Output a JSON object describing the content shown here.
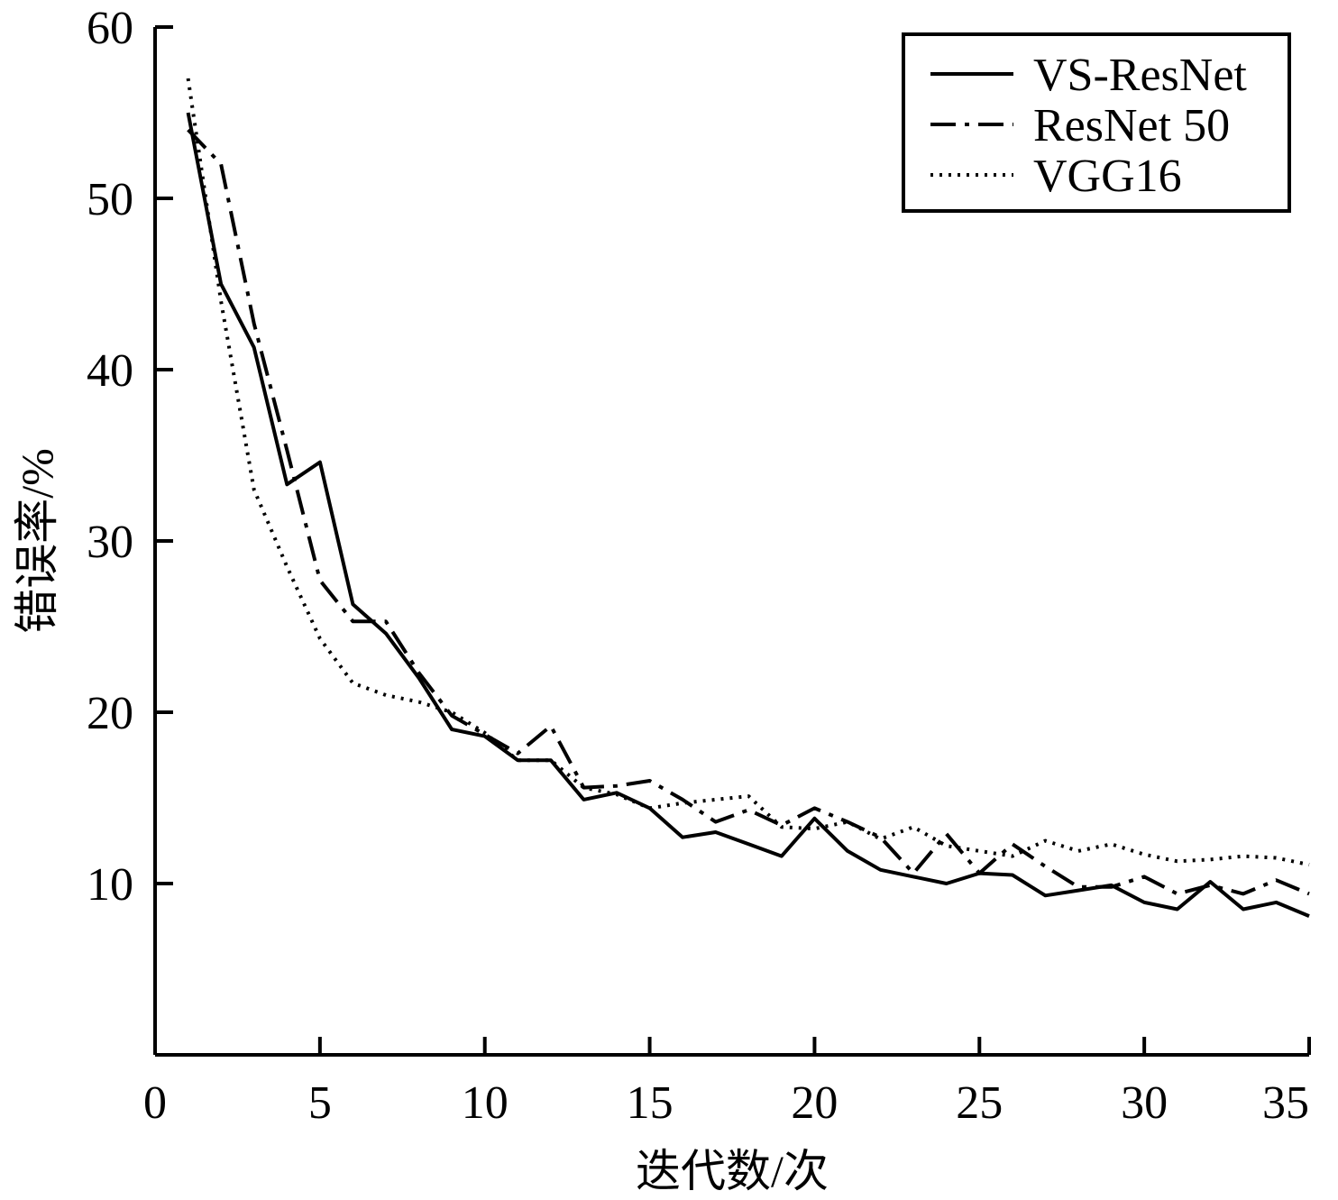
{
  "chart_data": {
    "type": "line",
    "title": "",
    "xlabel": "迭代数/次",
    "ylabel": "错误率/%",
    "xlim": [
      0,
      35
    ],
    "ylim": [
      0,
      60
    ],
    "x_ticks": [
      0,
      5,
      10,
      15,
      20,
      25,
      30,
      35
    ],
    "y_ticks": [
      10,
      20,
      30,
      40,
      50,
      60
    ],
    "grid": false,
    "legend_position": "top-right",
    "series": [
      {
        "name": "VS-ResNet",
        "style": "solid",
        "color": "#000000",
        "x": [
          1,
          2,
          3,
          4,
          5,
          6,
          7,
          8,
          9,
          10,
          11,
          12,
          13,
          14,
          15,
          16,
          17,
          18,
          19,
          20,
          21,
          22,
          23,
          24,
          25,
          26,
          27,
          28,
          29,
          30,
          31,
          32,
          33,
          34,
          35
        ],
        "y": [
          55,
          45,
          41.3,
          33.3,
          34.6,
          26.3,
          24.6,
          22,
          19,
          18.6,
          17.2,
          17.2,
          14.9,
          15.3,
          14.4,
          12.7,
          13,
          12.3,
          11.6,
          13.8,
          11.9,
          10.8,
          10.4,
          10,
          10.6,
          10.5,
          9.3,
          9.6,
          9.9,
          8.9,
          8.5,
          10.1,
          8.5,
          8.9,
          8.1
        ]
      },
      {
        "name": "ResNet 50",
        "style": "dash-dot",
        "color": "#000000",
        "x": [
          1,
          2,
          3,
          4,
          5,
          6,
          7,
          8,
          9,
          10,
          11,
          12,
          13,
          14,
          15,
          16,
          17,
          18,
          19,
          20,
          21,
          22,
          23,
          24,
          25,
          26,
          27,
          28,
          29,
          30,
          31,
          32,
          33,
          34,
          35
        ],
        "y": [
          54,
          52,
          42.7,
          35.3,
          27.7,
          25.3,
          25.3,
          22.3,
          19.8,
          18.7,
          17.6,
          19.2,
          15.6,
          15.7,
          16,
          14.9,
          13.6,
          14.3,
          13.4,
          14.4,
          13.6,
          12.7,
          10.6,
          12.9,
          10.6,
          12.3,
          11,
          9.8,
          9.8,
          10.4,
          9.4,
          9.9,
          9.4,
          10.2,
          9.4
        ]
      },
      {
        "name": "VGG16",
        "style": "dotted",
        "color": "#000000",
        "x": [
          1,
          2,
          3,
          4,
          5,
          6,
          7,
          8,
          9,
          10,
          11,
          12,
          13,
          14,
          15,
          16,
          17,
          18,
          19,
          20,
          21,
          22,
          23,
          24,
          25,
          26,
          27,
          28,
          29,
          30,
          31,
          32,
          33,
          34,
          35
        ],
        "y": [
          57,
          44,
          33,
          28.5,
          24.3,
          21.7,
          21,
          20.6,
          20,
          18.8,
          17.2,
          17.2,
          15.6,
          15.2,
          14.4,
          14.7,
          14.9,
          15.1,
          13.3,
          13.2,
          13.6,
          12.6,
          13.3,
          12.2,
          11.9,
          11.6,
          12.5,
          11.9,
          12.3,
          11.7,
          11.3,
          11.4,
          11.6,
          11.5,
          11.1
        ]
      }
    ]
  }
}
